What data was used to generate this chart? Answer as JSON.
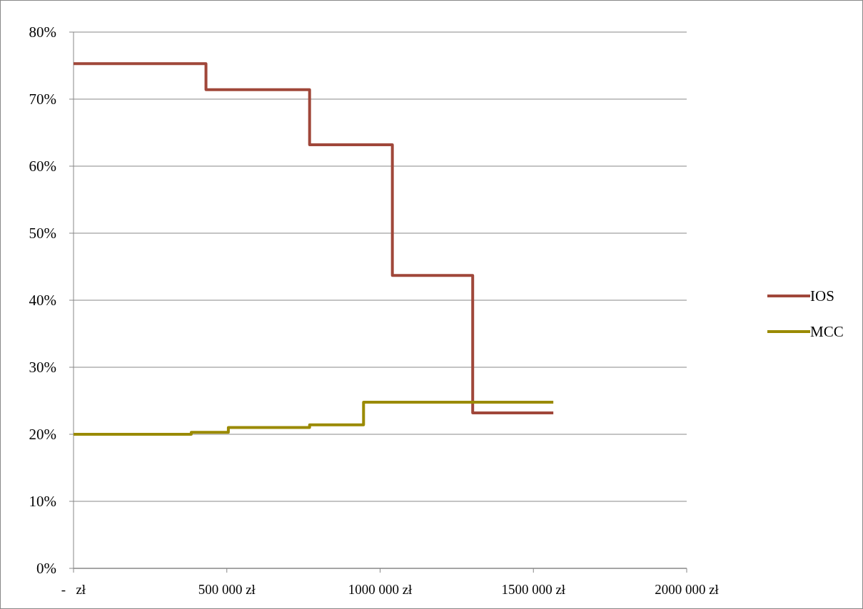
{
  "chart_data": {
    "type": "step",
    "xlim": [
      0,
      2000000
    ],
    "ylim": [
      0,
      80
    ],
    "xticks": [
      {
        "value": 0,
        "label": "-   zł"
      },
      {
        "value": 500000,
        "label": "500 000 zł"
      },
      {
        "value": 1000000,
        "label": "1000 000 zł"
      },
      {
        "value": 1500000,
        "label": "1500 000 zł"
      },
      {
        "value": 2000000,
        "label": "2000 000 zł"
      }
    ],
    "yticks": [
      {
        "value": 0,
        "label": "0%"
      },
      {
        "value": 10,
        "label": "10%"
      },
      {
        "value": 20,
        "label": "20%"
      },
      {
        "value": 30,
        "label": "30%"
      },
      {
        "value": 40,
        "label": "40%"
      },
      {
        "value": 50,
        "label": "50%"
      },
      {
        "value": 60,
        "label": "60%"
      },
      {
        "value": 70,
        "label": "70%"
      },
      {
        "value": 80,
        "label": "80%"
      }
    ],
    "grid": "y",
    "legend": "right",
    "series": [
      {
        "name": "IOS",
        "color": "#a0473a",
        "x": [
          0,
          432000,
          770000,
          1040000,
          1302000,
          1565000
        ],
        "values": [
          75.3,
          71.4,
          63.2,
          43.7,
          23.2,
          23.2
        ]
      },
      {
        "name": "MCC",
        "color": "#9a8a00",
        "x": [
          0,
          384000,
          505000,
          770000,
          946000,
          1565000
        ],
        "values": [
          20.0,
          20.3,
          21.0,
          21.4,
          24.8,
          24.8
        ]
      }
    ]
  }
}
